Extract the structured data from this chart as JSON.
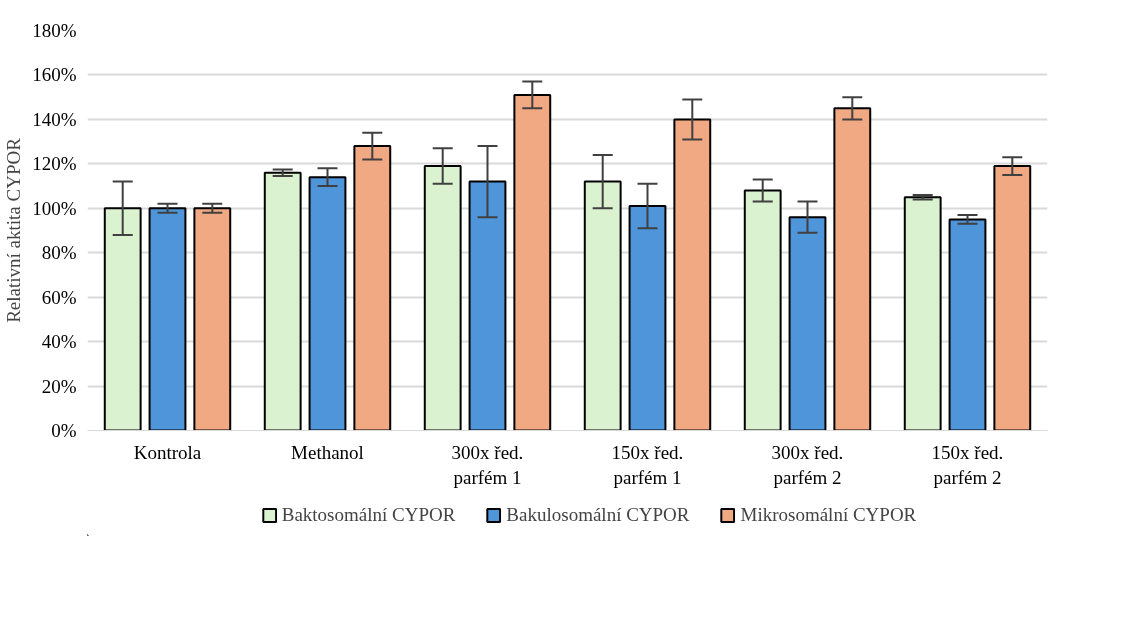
{
  "chart_data": {
    "type": "bar",
    "ylabel": "Relativní aktita CYPOR",
    "categories": [
      "Kontrola",
      "Methanol",
      "300x řed.\nparfém 1",
      "150x řed.\nparfém 1",
      "300x řed.\nparfém 2",
      "150x řed.\nparfém 2"
    ],
    "series": [
      {
        "name": "Baktosomální CYPOR",
        "color": "#daf2d0",
        "values": [
          100,
          116,
          119,
          112,
          108,
          105
        ],
        "errors": [
          12,
          1.5,
          8,
          12,
          5,
          1
        ]
      },
      {
        "name": "Bakulosomální CYPOR",
        "color": "#4e95d9",
        "values": [
          100,
          114,
          112,
          101,
          96,
          95
        ],
        "errors": [
          2,
          4,
          16,
          10,
          7,
          2
        ]
      },
      {
        "name": "Mikrosomální CYPOR",
        "color": "#f1a983",
        "values": [
          100,
          128,
          151,
          140,
          145,
          119
        ],
        "errors": [
          2,
          6,
          6,
          9,
          5,
          4
        ]
      }
    ],
    "ylim": [
      0,
      180
    ],
    "yticks": [
      {
        "value": 0,
        "label": "0%"
      },
      {
        "value": 20,
        "label": "20%"
      },
      {
        "value": 40,
        "label": "40%"
      },
      {
        "value": 60,
        "label": "60%"
      },
      {
        "value": 80,
        "label": "80%"
      },
      {
        "value": 100,
        "label": "100%"
      },
      {
        "value": 120,
        "label": "120%"
      },
      {
        "value": 140,
        "label": "140%"
      },
      {
        "value": 160,
        "label": "160%"
      },
      {
        "value": 180,
        "label": "180%"
      }
    ],
    "grid": "y",
    "legend": "bottom"
  }
}
